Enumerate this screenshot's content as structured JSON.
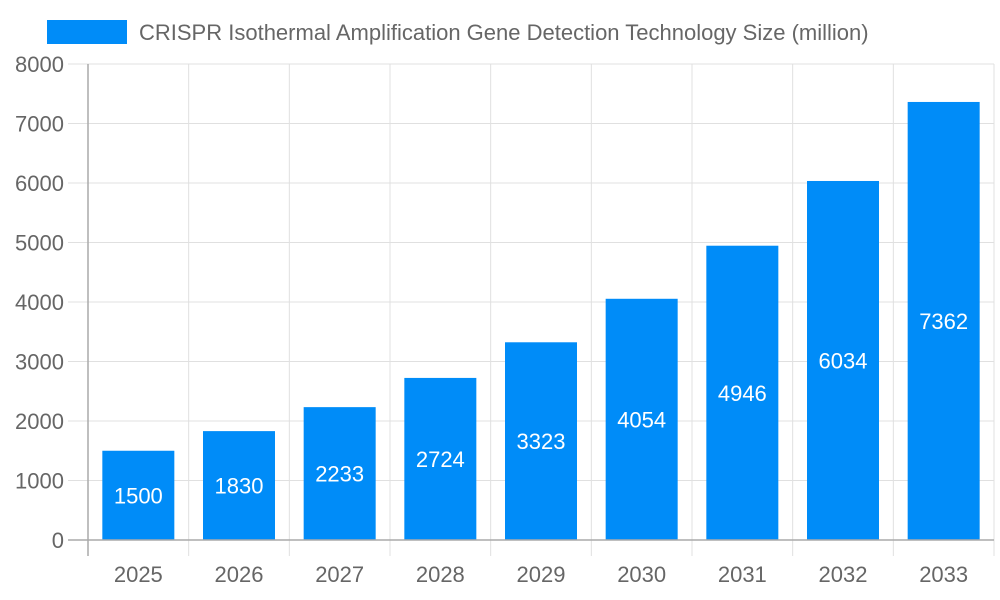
{
  "chart_data": {
    "type": "bar",
    "categories": [
      "2025",
      "2026",
      "2027",
      "2028",
      "2029",
      "2030",
      "2031",
      "2032",
      "2033"
    ],
    "series": [
      {
        "name": "CRISPR Isothermal Amplification Gene Detection Technology Size (million)",
        "values": [
          1500,
          1830,
          2233,
          2724,
          3323,
          4054,
          4946,
          6034,
          7362
        ],
        "color": "#008cf8"
      }
    ],
    "ylim": [
      0,
      8000
    ],
    "yticks": [
      0,
      1000,
      2000,
      3000,
      4000,
      5000,
      6000,
      7000,
      8000
    ],
    "grid": true,
    "legend": "top",
    "data_labels": true
  }
}
